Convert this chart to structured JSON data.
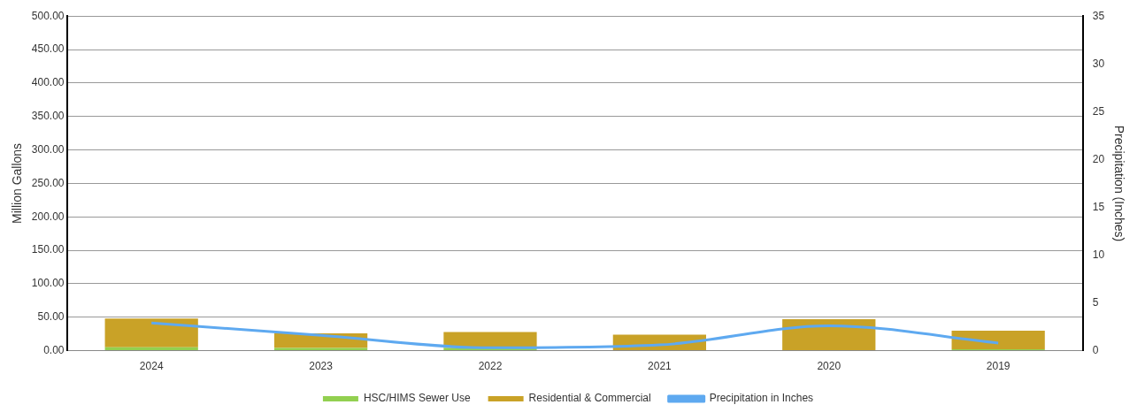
{
  "chart_data": {
    "type": "bar",
    "stacked": true,
    "categories": [
      "2024",
      "2023",
      "2022",
      "2021",
      "2020",
      "2019"
    ],
    "series": [
      {
        "name": "HSC/HIMS Sewer Use",
        "color": "#92d050",
        "values": [
          5,
          4,
          4,
          null,
          null,
          2
        ]
      },
      {
        "name": "Residential & Commercial",
        "color": "#c9a227",
        "values": [
          43,
          22,
          24,
          24,
          47,
          28
        ]
      },
      {
        "name": "Precipitation in Inches",
        "type": "line",
        "axis": "y2",
        "color": "#5ea9f0",
        "values": [
          2.9,
          1.6,
          0.3,
          0.6,
          2.6,
          0.8
        ]
      }
    ],
    "ylabel": "Million Gallons",
    "y2label": "Precipitation (Inches)",
    "ylim": [
      0,
      500
    ],
    "yticks": [
      {
        "value": 0,
        "label": "0.00"
      },
      {
        "value": 50,
        "label": "50.00"
      },
      {
        "value": 100,
        "label": "100.00"
      },
      {
        "value": 150,
        "label": "150.00"
      },
      {
        "value": 200,
        "label": "200.00"
      },
      {
        "value": 250,
        "label": "250.00"
      },
      {
        "value": 300,
        "label": "300.00"
      },
      {
        "value": 350,
        "label": "350.00"
      },
      {
        "value": 400,
        "label": "400.00"
      },
      {
        "value": 450,
        "label": "450.00"
      },
      {
        "value": 500,
        "label": "500.00"
      }
    ],
    "y2lim": [
      0,
      35
    ],
    "y2ticks": [
      0,
      5,
      10,
      15,
      20,
      25,
      30,
      35
    ],
    "grid": "y",
    "legend": "bottom",
    "marker": "none"
  }
}
